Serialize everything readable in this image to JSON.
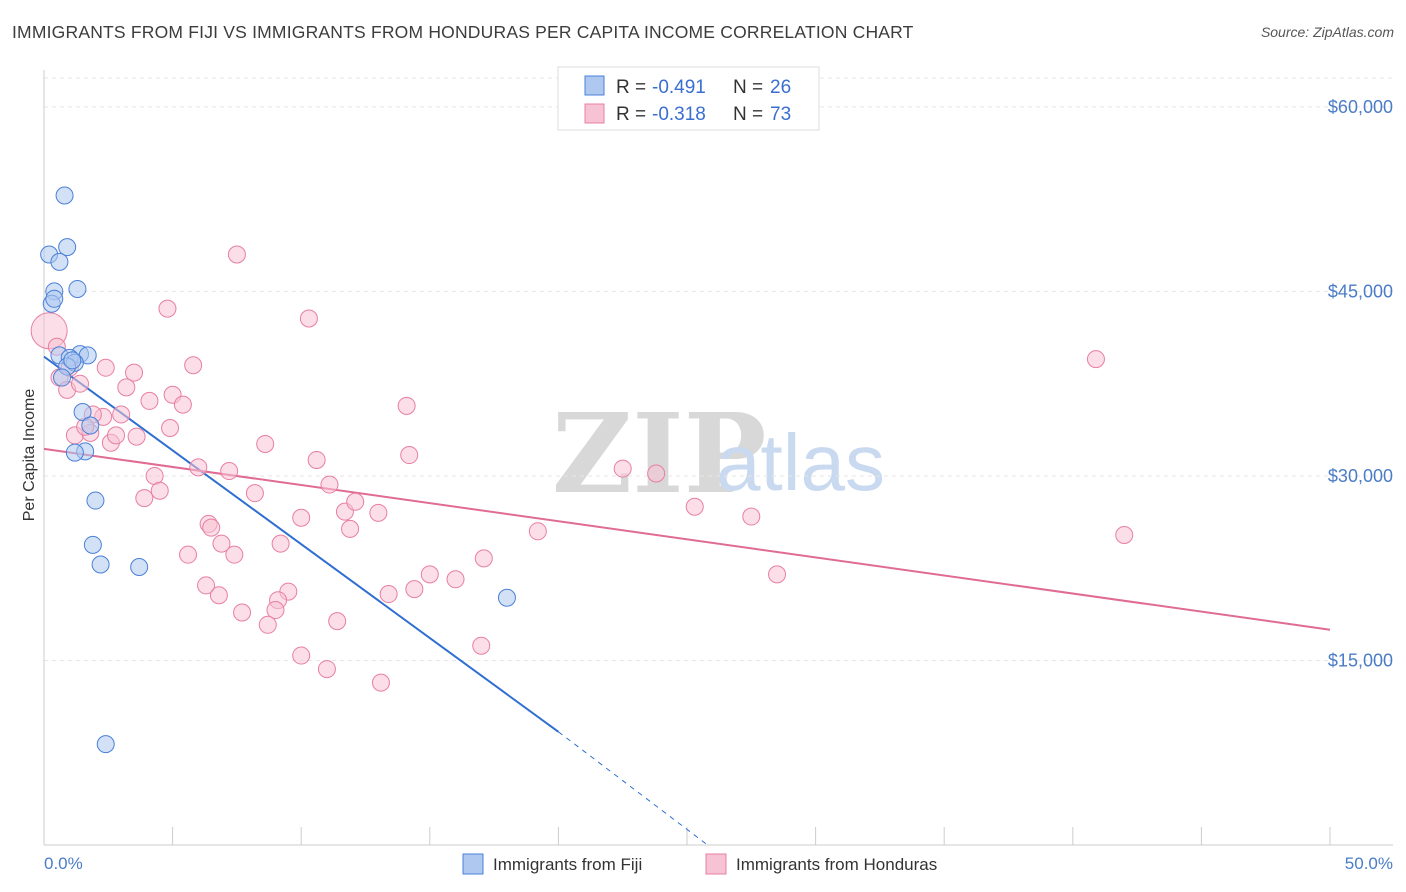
{
  "header": {
    "title": "IMMIGRANTS FROM FIJI VS IMMIGRANTS FROM HONDURAS PER CAPITA INCOME CORRELATION CHART",
    "source": "Source: ZipAtlas.com"
  },
  "watermark": {
    "zip": "ZIP",
    "atlas": "atlas"
  },
  "legend": {
    "fiji": {
      "r_label": "R =",
      "r_value": "-0.491",
      "n_label": "N =",
      "n_value": "26"
    },
    "honduras": {
      "r_label": "R =",
      "r_value": "-0.318",
      "n_label": "N =",
      "n_value": "73"
    }
  },
  "bottom_legend": {
    "fiji": "Immigrants from Fiji",
    "honduras": "Immigrants from Honduras"
  },
  "colors": {
    "fiji_fill": "#aec8f0",
    "fiji_stroke": "#4a80d8",
    "fiji_line": "#2f6fd1",
    "honduras_fill": "#f7c3d4",
    "honduras_stroke": "#e87fa3",
    "honduras_line": "#e06b95",
    "tick_text": "#4a7cc7",
    "grid": "#e6e6e6"
  },
  "chart_data": {
    "type": "scatter",
    "title": "IMMIGRANTS FROM FIJI VS IMMIGRANTS FROM HONDURAS PER CAPITA INCOME CORRELATION CHART",
    "xlabel": "",
    "ylabel": "Per Capita Income",
    "xlim": [
      0,
      50
    ],
    "ylim": [
      0,
      63000
    ],
    "x_tick_labels": [
      "0.0%",
      "50.0%"
    ],
    "y_ticks": [
      15000,
      30000,
      45000,
      60000
    ],
    "y_tick_labels": [
      "$15,000",
      "$30,000",
      "$45,000",
      "$60,000"
    ],
    "series": [
      {
        "name": "Immigrants from Fiji",
        "R": -0.491,
        "N": 26,
        "points": [
          [
            0.8,
            52800
          ],
          [
            0.2,
            48000
          ],
          [
            0.9,
            48600
          ],
          [
            0.6,
            47400
          ],
          [
            0.4,
            45000
          ],
          [
            1.3,
            45200
          ],
          [
            0.3,
            44000
          ],
          [
            0.4,
            44400
          ],
          [
            0.6,
            39800
          ],
          [
            1.4,
            39900
          ],
          [
            1.7,
            39800
          ],
          [
            1.0,
            39600
          ],
          [
            1.2,
            39200
          ],
          [
            0.9,
            38900
          ],
          [
            1.5,
            35200
          ],
          [
            1.8,
            34100
          ],
          [
            1.6,
            32000
          ],
          [
            1.2,
            31900
          ],
          [
            2.0,
            28000
          ],
          [
            1.9,
            24400
          ],
          [
            2.2,
            22800
          ],
          [
            3.7,
            22600
          ],
          [
            18.0,
            20100
          ],
          [
            2.4,
            8200
          ],
          [
            0.7,
            38000
          ],
          [
            1.1,
            39400
          ]
        ],
        "trend": {
          "x0": 0,
          "y0": 39700,
          "x1": 20,
          "y1": 9200,
          "dash_to_x": 25.8,
          "dash_to_y": 0
        }
      },
      {
        "name": "Immigrants from Honduras",
        "R": -0.318,
        "N": 73,
        "points": [
          [
            0.2,
            41800
          ],
          [
            0.5,
            40500
          ],
          [
            0.6,
            38000
          ],
          [
            0.9,
            37000
          ],
          [
            1.0,
            38800
          ],
          [
            1.4,
            37500
          ],
          [
            2.4,
            38800
          ],
          [
            3.5,
            38400
          ],
          [
            5.8,
            39000
          ],
          [
            7.5,
            48000
          ],
          [
            4.8,
            43600
          ],
          [
            10.3,
            42800
          ],
          [
            1.2,
            33300
          ],
          [
            1.8,
            33500
          ],
          [
            2.3,
            34800
          ],
          [
            2.6,
            32700
          ],
          [
            3.0,
            35000
          ],
          [
            3.2,
            37200
          ],
          [
            4.1,
            36100
          ],
          [
            4.9,
            33900
          ],
          [
            5.0,
            36600
          ],
          [
            5.4,
            35800
          ],
          [
            1.9,
            35000
          ],
          [
            1.6,
            34000
          ],
          [
            3.6,
            33200
          ],
          [
            2.8,
            33300
          ],
          [
            4.3,
            30000
          ],
          [
            4.5,
            28800
          ],
          [
            3.9,
            28200
          ],
          [
            6.0,
            30700
          ],
          [
            7.2,
            30400
          ],
          [
            8.6,
            32600
          ],
          [
            10.6,
            31300
          ],
          [
            11.1,
            29300
          ],
          [
            14.2,
            31700
          ],
          [
            14.1,
            35700
          ],
          [
            8.2,
            28600
          ],
          [
            10.0,
            26600
          ],
          [
            11.7,
            27100
          ],
          [
            12.1,
            27900
          ],
          [
            13.0,
            27000
          ],
          [
            11.9,
            25700
          ],
          [
            6.4,
            26100
          ],
          [
            6.5,
            25800
          ],
          [
            6.9,
            24500
          ],
          [
            7.4,
            23600
          ],
          [
            5.6,
            23600
          ],
          [
            9.2,
            24500
          ],
          [
            9.5,
            20600
          ],
          [
            9.1,
            19900
          ],
          [
            9.0,
            19100
          ],
          [
            7.7,
            18900
          ],
          [
            8.7,
            17900
          ],
          [
            6.8,
            20300
          ],
          [
            6.3,
            21100
          ],
          [
            11.4,
            18200
          ],
          [
            13.4,
            20400
          ],
          [
            14.4,
            20800
          ],
          [
            15.0,
            22000
          ],
          [
            16.0,
            21600
          ],
          [
            17.1,
            23300
          ],
          [
            19.2,
            25500
          ],
          [
            22.5,
            30600
          ],
          [
            23.8,
            30200
          ],
          [
            25.3,
            27500
          ],
          [
            27.5,
            26700
          ],
          [
            28.5,
            22000
          ],
          [
            40.9,
            39500
          ],
          [
            42.0,
            25200
          ],
          [
            10.0,
            15400
          ],
          [
            11.0,
            14300
          ],
          [
            13.1,
            13200
          ],
          [
            17.0,
            16200
          ]
        ],
        "trend": {
          "x0": 0,
          "y0": 32200,
          "x1": 50,
          "y1": 17500
        }
      }
    ]
  }
}
